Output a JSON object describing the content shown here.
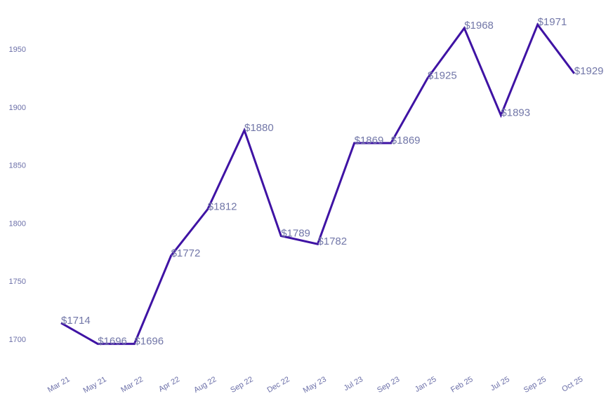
{
  "chart_data": {
    "type": "line",
    "categories": [
      "Mar 21",
      "May 21",
      "Mar 22",
      "Apr 22",
      "Aug 22",
      "Sep 22",
      "Dec 22",
      "May 23",
      "Jul 23",
      "Sep 23",
      "Jan 25",
      "Feb 25",
      "Jul 25",
      "Sep 25",
      "Oct 25"
    ],
    "values": [
      1714,
      1696,
      1696,
      1772,
      1812,
      1880,
      1789,
      1782,
      1869,
      1869,
      1925,
      1968,
      1893,
      1971,
      1929
    ],
    "data_labels": [
      "$1714",
      "$1696",
      "$1696",
      "$1772",
      "$1812",
      "$1880",
      "$1789",
      "$1782",
      "$1869",
      "$1869",
      "$1925",
      "$1968",
      "$1893",
      "$1971",
      "$1929"
    ],
    "y_ticks": [
      1700,
      1750,
      1800,
      1850,
      1900,
      1950
    ],
    "ylim": [
      1690,
      1975
    ],
    "title": "",
    "xlabel": "",
    "ylabel": "",
    "grid": false,
    "legend": "none",
    "line_color": "#3f13a4",
    "label_color": "#7277a8",
    "tick_color": "#6b6fa8"
  }
}
